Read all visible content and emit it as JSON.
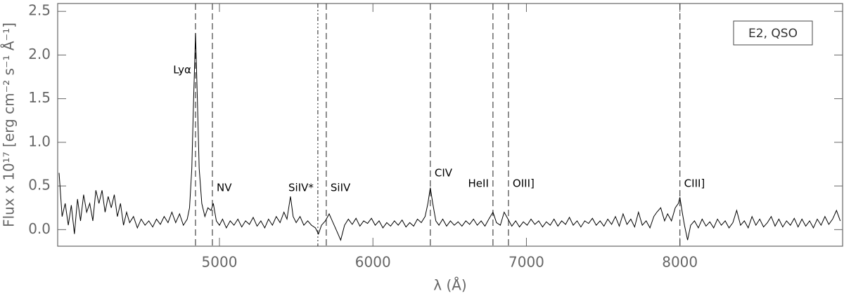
{
  "chart_data": {
    "type": "line",
    "xlabel": "λ (Å)",
    "ylabel": "Flux x 10¹⁷ [erg cm⁻² s⁻¹ Å⁻¹]",
    "legend_text": "E2, QSO",
    "legend_position": "upper right",
    "xlim": [
      3946,
      9060
    ],
    "ylim": [
      -0.19,
      2.59
    ],
    "xticks": [
      5000,
      6000,
      7000,
      8000
    ],
    "yticks": [
      {
        "value": 0,
        "label": "0.0"
      },
      0.5,
      {
        "value": 1,
        "label": "1.0"
      },
      1.5,
      {
        "value": 2,
        "label": "2.0"
      },
      2.5
    ],
    "lines": [
      {
        "wavelength": 4844,
        "label": "Lyα",
        "style": "dashed"
      },
      {
        "wavelength": 4954,
        "label": "NV",
        "style": "dashed"
      },
      {
        "wavelength": 5641,
        "label": "SiIV*",
        "style": "dotted"
      },
      {
        "wavelength": 5696,
        "label": "SiIV",
        "style": "dashed"
      },
      {
        "wavelength": 6374,
        "label": "CIV",
        "style": "dashed"
      },
      {
        "wavelength": 6782,
        "label": "HeII",
        "style": "dashed"
      },
      {
        "wavelength": 6883,
        "label": "OIII]",
        "style": "dashed"
      },
      {
        "wavelength": 8000,
        "label": "CIII]",
        "style": "dashed"
      }
    ],
    "series": [
      {
        "color": "#000000",
        "x": [
          3955,
          3975,
          3995,
          4015,
          4035,
          4055,
          4075,
          4095,
          4115,
          4135,
          4155,
          4175,
          4195,
          4215,
          4235,
          4255,
          4275,
          4295,
          4315,
          4335,
          4355,
          4375,
          4395,
          4415,
          4440,
          4465,
          4490,
          4515,
          4540,
          4565,
          4590,
          4615,
          4640,
          4665,
          4690,
          4715,
          4740,
          4765,
          4790,
          4805,
          4820,
          4832,
          4844,
          4856,
          4868,
          4885,
          4905,
          4925,
          4945,
          4960,
          4980,
          5000,
          5020,
          5045,
          5070,
          5095,
          5120,
          5145,
          5170,
          5195,
          5220,
          5245,
          5270,
          5295,
          5320,
          5345,
          5370,
          5395,
          5420,
          5440,
          5463,
          5480,
          5500,
          5525,
          5550,
          5575,
          5600,
          5625,
          5645,
          5665,
          5690,
          5715,
          5740,
          5765,
          5790,
          5815,
          5840,
          5865,
          5890,
          5915,
          5940,
          5965,
          5990,
          6015,
          6040,
          6065,
          6090,
          6115,
          6140,
          6165,
          6190,
          6215,
          6240,
          6265,
          6290,
          6315,
          6340,
          6358,
          6374,
          6390,
          6410,
          6430,
          6455,
          6480,
          6505,
          6530,
          6555,
          6580,
          6605,
          6630,
          6655,
          6680,
          6705,
          6730,
          6755,
          6782,
          6805,
          6830,
          6855,
          6880,
          6905,
          6930,
          6955,
          6980,
          7005,
          7030,
          7055,
          7080,
          7105,
          7130,
          7155,
          7180,
          7205,
          7230,
          7255,
          7280,
          7305,
          7330,
          7355,
          7380,
          7405,
          7430,
          7455,
          7480,
          7505,
          7530,
          7555,
          7580,
          7605,
          7630,
          7655,
          7680,
          7705,
          7730,
          7755,
          7780,
          7805,
          7830,
          7850,
          7875,
          7900,
          7920,
          7945,
          7970,
          7990,
          8000,
          8015,
          8030,
          8050,
          8070,
          8095,
          8120,
          8145,
          8170,
          8195,
          8220,
          8245,
          8270,
          8295,
          8320,
          8345,
          8370,
          8395,
          8420,
          8445,
          8470,
          8495,
          8520,
          8545,
          8570,
          8595,
          8620,
          8645,
          8670,
          8695,
          8720,
          8745,
          8770,
          8795,
          8820,
          8845,
          8870,
          8895,
          8920,
          8945,
          8970,
          8995,
          9020,
          9045
        ],
        "values": [
          0.65,
          0.15,
          0.3,
          0.05,
          0.28,
          -0.05,
          0.35,
          0.1,
          0.4,
          0.2,
          0.3,
          0.1,
          0.45,
          0.3,
          0.45,
          0.2,
          0.38,
          0.25,
          0.4,
          0.15,
          0.3,
          0.05,
          0.2,
          0.08,
          0.15,
          0.02,
          0.12,
          0.05,
          0.1,
          0.03,
          0.12,
          0.06,
          0.15,
          0.08,
          0.2,
          0.08,
          0.18,
          0.05,
          0.12,
          0.25,
          0.7,
          1.5,
          2.25,
          1.5,
          0.7,
          0.3,
          0.15,
          0.25,
          0.22,
          0.3,
          0.1,
          0.05,
          0.12,
          0.02,
          0.1,
          0.05,
          0.12,
          0.03,
          0.1,
          0.06,
          0.14,
          0.04,
          0.1,
          0.02,
          0.12,
          0.05,
          0.15,
          0.08,
          0.2,
          0.12,
          0.38,
          0.15,
          0.08,
          0.15,
          0.05,
          0.1,
          0.05,
          0.02,
          -0.05,
          0.05,
          0.1,
          0.18,
          0.08,
          -0.02,
          -0.12,
          0.05,
          0.12,
          0.06,
          0.13,
          0.04,
          0.1,
          0.07,
          0.13,
          0.05,
          0.1,
          0.02,
          0.08,
          0.04,
          0.1,
          0.05,
          0.11,
          0.03,
          0.08,
          0.04,
          0.12,
          0.08,
          0.15,
          0.3,
          0.48,
          0.3,
          0.1,
          0.05,
          0.12,
          0.04,
          0.1,
          0.05,
          0.09,
          0.04,
          0.1,
          0.06,
          0.12,
          0.05,
          0.1,
          0.04,
          0.12,
          0.2,
          0.08,
          0.05,
          0.2,
          0.12,
          0.04,
          0.1,
          0.03,
          0.09,
          0.05,
          0.12,
          0.06,
          0.1,
          0.03,
          0.09,
          0.05,
          0.12,
          0.04,
          0.1,
          0.06,
          0.14,
          0.05,
          0.1,
          0.03,
          0.1,
          0.07,
          0.13,
          0.05,
          0.1,
          0.04,
          0.12,
          0.06,
          0.15,
          0.04,
          0.18,
          0.06,
          0.12,
          0.03,
          0.2,
          0.05,
          0.1,
          0.02,
          0.15,
          0.2,
          0.25,
          0.1,
          0.18,
          0.1,
          0.25,
          0.3,
          0.37,
          0.2,
          0.05,
          -0.12,
          0.05,
          0.1,
          0.02,
          0.12,
          0.04,
          0.09,
          0.02,
          0.12,
          0.05,
          0.1,
          0.02,
          0.08,
          0.22,
          0.05,
          0.1,
          0.02,
          0.15,
          0.05,
          0.12,
          0.03,
          0.08,
          0.15,
          0.04,
          0.12,
          0.03,
          0.1,
          0.05,
          0.13,
          0.03,
          0.12,
          0.04,
          0.1,
          0.02,
          0.12,
          0.05,
          0.15,
          0.06,
          0.12,
          0.22,
          0.1
        ]
      }
    ]
  }
}
